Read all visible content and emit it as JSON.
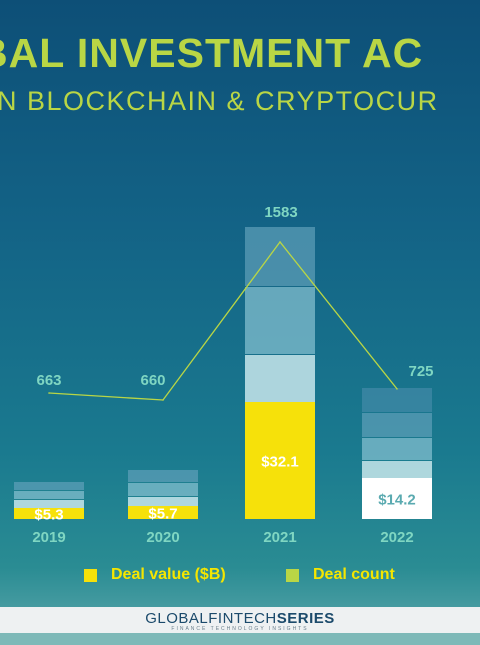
{
  "title": "BAL INVESTMENT AC",
  "subtitle": "IN BLOCKCHAIN & CRYPTOCUR",
  "footer": {
    "brand_part1": "GLOBALFINTECH",
    "brand_part2": "SERIES",
    "tagline": "FINANCE TECHNOLOGY INSIGHTS"
  },
  "colors": {
    "deal_value": "#f6e10a",
    "deal_count": "#b9d645",
    "value_label": "#ffffff",
    "count_label": "#7fd6c2",
    "year_label": "#7fd6c2"
  },
  "chart_data": {
    "type": "bar",
    "categories": [
      "2019",
      "2020",
      "2021",
      "2022"
    ],
    "series": [
      {
        "name": "Deal value ($B)",
        "type": "bar",
        "values": [
          5.3,
          5.7,
          32.1,
          14.2
        ],
        "labels": [
          "$5.3",
          "$5.7",
          "$32.1",
          "$14.2"
        ]
      },
      {
        "name": "Deal count",
        "type": "line",
        "values": [
          663,
          660,
          1583,
          725
        ],
        "labels": [
          "663",
          "660",
          "1583",
          "725"
        ]
      }
    ],
    "legend": [
      "Deal value ($B)",
      "Deal count"
    ],
    "legend_position": "bottom"
  }
}
